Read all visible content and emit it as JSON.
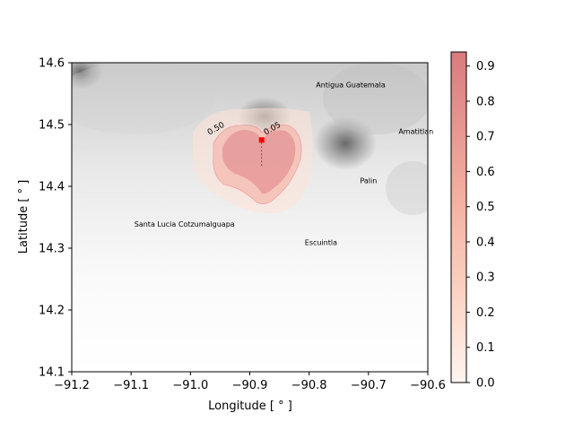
{
  "chart_data": {
    "type": "heatmap",
    "xlabel": "Longitude [ ° ]",
    "ylabel": "Latitude [ ° ]",
    "xlim": [
      -91.2,
      -90.6
    ],
    "ylim": [
      14.1,
      14.6
    ],
    "x_ticks": [
      "−91.2",
      "−91.1",
      "−91.0",
      "−90.9",
      "−90.8",
      "−90.7",
      "−90.6"
    ],
    "x_tick_values": [
      -91.2,
      -91.1,
      -91.0,
      -90.9,
      -90.8,
      -90.7,
      -90.6
    ],
    "y_ticks": [
      "14.1",
      "14.2",
      "14.3",
      "14.4",
      "14.5",
      "14.6"
    ],
    "y_tick_values": [
      14.1,
      14.2,
      14.3,
      14.4,
      14.5,
      14.6
    ],
    "colorbar": {
      "range": [
        0.0,
        0.94
      ],
      "ticks": [
        "0.0",
        "0.1",
        "0.2",
        "0.3",
        "0.4",
        "0.5",
        "0.6",
        "0.7",
        "0.8",
        "0.9"
      ],
      "tick_values": [
        0.0,
        0.1,
        0.2,
        0.3,
        0.4,
        0.5,
        0.6,
        0.7,
        0.8,
        0.9
      ],
      "colormap": "Reds",
      "color_low": "#fff5f0",
      "color_high": "#cb4b4f"
    },
    "background": "grayscale terrain",
    "contour_labels": [
      {
        "text": "0.50",
        "lon": -90.955,
        "lat": 14.49
      },
      {
        "text": "0.05",
        "lon": -90.86,
        "lat": 14.49
      }
    ],
    "vent": {
      "lon": -90.88,
      "lat": 14.475,
      "color": "#ff0000"
    },
    "towns": [
      {
        "name": "Antigua Guatemala",
        "lon": -90.73,
        "lat": 14.56
      },
      {
        "name": "Amatitlan",
        "lon": -90.62,
        "lat": 14.485
      },
      {
        "name": "Palin",
        "lon": -90.7,
        "lat": 14.405
      },
      {
        "name": "Santa Lucia Cotzumalguapa",
        "lon": -91.01,
        "lat": 14.335
      },
      {
        "name": "Escuintla",
        "lon": -90.78,
        "lat": 14.305
      }
    ]
  }
}
